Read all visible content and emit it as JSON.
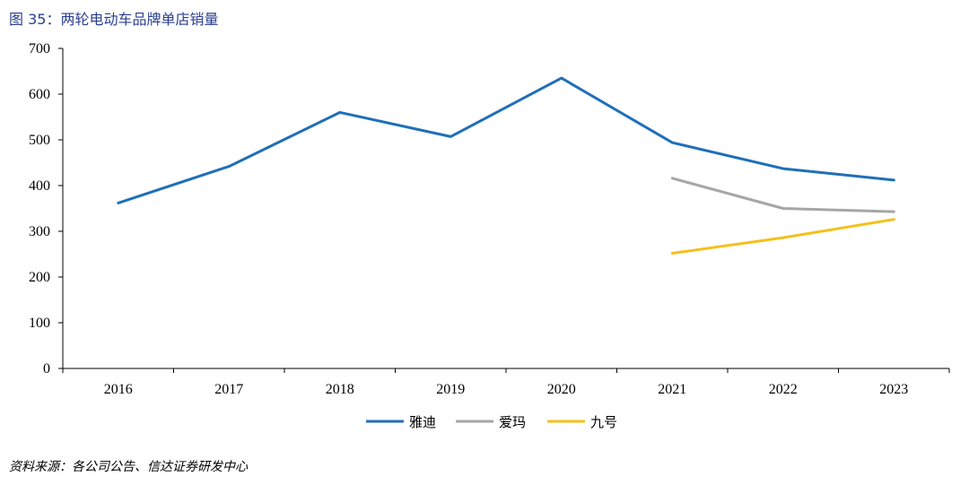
{
  "figure": {
    "title": "图 35：两轮电动车品牌单店销量",
    "source": "资料来源：各公司公告、信达证券研发中心"
  },
  "chart_data": {
    "type": "line",
    "title": "图 35：两轮电动车品牌单店销量",
    "xlabel": "",
    "ylabel": "",
    "categories": [
      "2016",
      "2017",
      "2018",
      "2019",
      "2020",
      "2021",
      "2022",
      "2023"
    ],
    "ylim": [
      0,
      700
    ],
    "yticks": [
      0,
      100,
      200,
      300,
      400,
      500,
      600,
      700
    ],
    "grid": false,
    "legend_position": "bottom",
    "series": [
      {
        "name": "雅迪",
        "color": "#1f6fb8",
        "values": [
          362,
          442,
          560,
          507,
          635,
          494,
          437,
          412
        ]
      },
      {
        "name": "爱玛",
        "color": "#a6a6a6",
        "values": [
          null,
          null,
          null,
          null,
          null,
          416,
          350,
          343
        ]
      },
      {
        "name": "九号",
        "color": "#f5c01b",
        "values": [
          null,
          null,
          null,
          null,
          null,
          252,
          286,
          326
        ]
      }
    ]
  }
}
